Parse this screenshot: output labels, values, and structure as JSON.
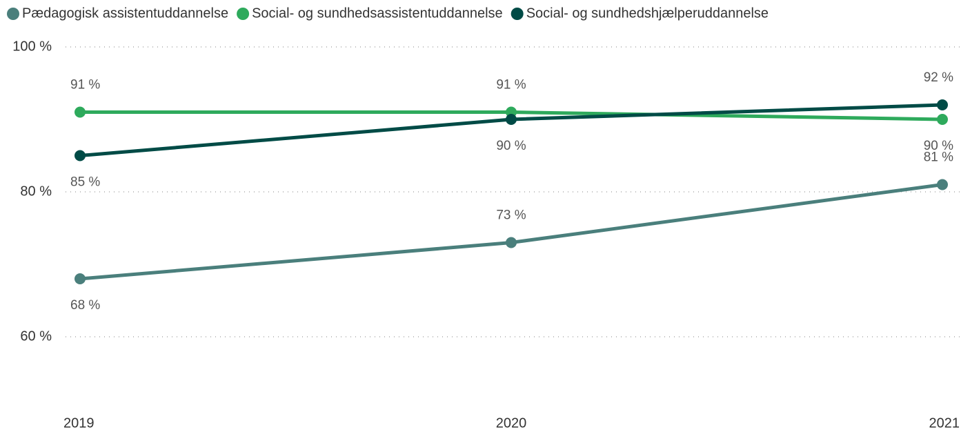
{
  "chart_data": {
    "type": "line",
    "categories": [
      "2019",
      "2020",
      "2021"
    ],
    "series": [
      {
        "name": "Pædagogisk assistentuddannelse",
        "color": "#4a7f7c",
        "values": [
          68,
          73,
          81
        ],
        "value_labels": [
          "68 %",
          "73 %",
          "81 %"
        ]
      },
      {
        "name": "Social- og sundhedsassistentuddannelse",
        "color": "#2eaa5c",
        "values": [
          91,
          91,
          90
        ],
        "value_labels": [
          "91 %",
          "91 %",
          "90 %"
        ]
      },
      {
        "name": "Social- og sundhedshjælperuddannelse",
        "color": "#004b46",
        "values": [
          85,
          90,
          92
        ],
        "value_labels": [
          "85 %",
          "90 %",
          "92 %"
        ]
      }
    ],
    "ylim": [
      50,
      100
    ],
    "yticks": [
      {
        "value": 60,
        "label": "60 %"
      },
      {
        "value": 80,
        "label": "80 %"
      },
      {
        "value": 100,
        "label": "100 %"
      }
    ],
    "grid": true,
    "legend": "top"
  }
}
